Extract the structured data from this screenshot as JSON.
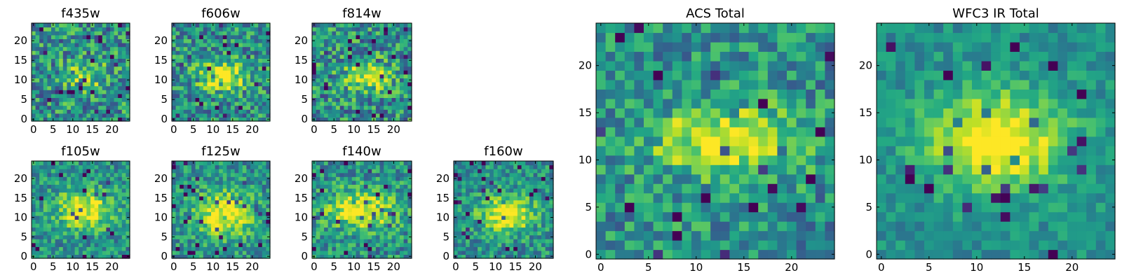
{
  "chart_data": [
    {
      "type": "heatmap",
      "title": "f435w",
      "grid_size": 25,
      "x_ticks": [
        0,
        5,
        10,
        15,
        20
      ],
      "y_ticks": [
        0,
        5,
        10,
        15,
        20
      ],
      "xlim": [
        -0.5,
        24.5
      ],
      "ylim": [
        -0.5,
        24.5
      ],
      "colormap": "viridis",
      "source_center": [
        13,
        11
      ],
      "source_sigma": [
        4,
        3
      ],
      "source_strength": 0.3,
      "noise": 0.3,
      "seed": 11
    },
    {
      "type": "heatmap",
      "title": "f606w",
      "grid_size": 25,
      "x_ticks": [
        0,
        5,
        10,
        15,
        20
      ],
      "y_ticks": [
        0,
        5,
        10,
        15,
        20
      ],
      "xlim": [
        -0.5,
        24.5
      ],
      "ylim": [
        -0.5,
        24.5
      ],
      "colormap": "viridis",
      "source_center": [
        13,
        11
      ],
      "source_sigma": [
        4.5,
        2.5
      ],
      "source_strength": 0.55,
      "noise": 0.28,
      "seed": 23
    },
    {
      "type": "heatmap",
      "title": "f814w",
      "grid_size": 25,
      "x_ticks": [
        0,
        5,
        10,
        15,
        20
      ],
      "y_ticks": [
        0,
        5,
        10,
        15,
        20
      ],
      "xlim": [
        -0.5,
        24.5
      ],
      "ylim": [
        -0.5,
        24.5
      ],
      "colormap": "viridis",
      "source_center": [
        14,
        11
      ],
      "source_sigma": [
        4,
        2.5
      ],
      "source_strength": 0.5,
      "noise": 0.3,
      "seed": 37
    },
    {
      "type": "heatmap",
      "title": "f105w",
      "grid_size": 25,
      "x_ticks": [
        0,
        5,
        10,
        15,
        20
      ],
      "y_ticks": [
        0,
        5,
        10,
        15,
        20
      ],
      "xlim": [
        -0.5,
        24.5
      ],
      "ylim": [
        -0.5,
        24.5
      ],
      "colormap": "viridis",
      "source_center": [
        13,
        12
      ],
      "source_sigma": [
        5,
        3.5
      ],
      "source_strength": 0.5,
      "noise": 0.22,
      "seed": 41
    },
    {
      "type": "heatmap",
      "title": "f125w",
      "grid_size": 25,
      "x_ticks": [
        0,
        5,
        10,
        15,
        20
      ],
      "y_ticks": [
        0,
        5,
        10,
        15,
        20
      ],
      "xlim": [
        -0.5,
        24.5
      ],
      "ylim": [
        -0.5,
        24.5
      ],
      "colormap": "viridis",
      "source_center": [
        13,
        11
      ],
      "source_sigma": [
        5,
        4
      ],
      "source_strength": 0.55,
      "noise": 0.22,
      "seed": 53
    },
    {
      "type": "heatmap",
      "title": "f140w",
      "grid_size": 25,
      "x_ticks": [
        0,
        5,
        10,
        15,
        20
      ],
      "y_ticks": [
        0,
        5,
        10,
        15,
        20
      ],
      "xlim": [
        -0.5,
        24.5
      ],
      "ylim": [
        -0.5,
        24.5
      ],
      "colormap": "viridis",
      "source_center": [
        12,
        12
      ],
      "source_sigma": [
        6,
        3.5
      ],
      "source_strength": 0.5,
      "noise": 0.24,
      "seed": 67
    },
    {
      "type": "heatmap",
      "title": "f160w",
      "grid_size": 25,
      "x_ticks": [
        0,
        5,
        10,
        15,
        20
      ],
      "y_ticks": [
        0,
        5,
        10,
        15,
        20
      ],
      "xlim": [
        -0.5,
        24.5
      ],
      "ylim": [
        -0.5,
        24.5
      ],
      "colormap": "viridis",
      "source_center": [
        13,
        11
      ],
      "source_sigma": [
        4.5,
        3
      ],
      "source_strength": 0.6,
      "noise": 0.22,
      "seed": 79
    },
    {
      "type": "heatmap",
      "title": "ACS Total",
      "grid_size": 25,
      "x_ticks": [
        0,
        5,
        10,
        15,
        20
      ],
      "y_ticks": [
        0,
        5,
        10,
        15,
        20
      ],
      "xlim": [
        -0.5,
        24.5
      ],
      "ylim": [
        -0.5,
        24.5
      ],
      "colormap": "viridis",
      "source_center": [
        13,
        12
      ],
      "source_sigma": [
        5,
        2.5
      ],
      "source_strength": 0.55,
      "noise": 0.24,
      "seed": 97
    },
    {
      "type": "heatmap",
      "title": "WFC3 IR Total",
      "grid_size": 25,
      "x_ticks": [
        0,
        5,
        10,
        15,
        20
      ],
      "y_ticks": [
        0,
        5,
        10,
        15,
        20
      ],
      "xlim": [
        -0.5,
        24.5
      ],
      "ylim": [
        -0.5,
        24.5
      ],
      "colormap": "viridis",
      "source_center": [
        12,
        12
      ],
      "source_sigma": [
        5,
        3.5
      ],
      "source_strength": 0.6,
      "noise": 0.14,
      "seed": 101
    }
  ]
}
